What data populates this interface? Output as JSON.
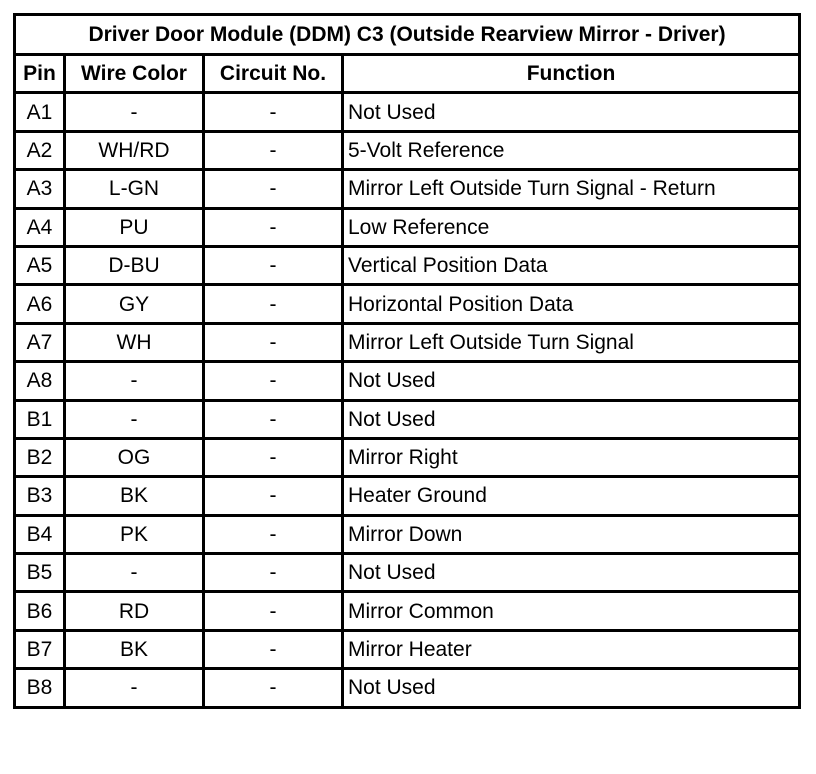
{
  "title": "Driver Door Module (DDM) C3 (Outside Rearview Mirror - Driver)",
  "headers": {
    "pin": "Pin",
    "wire_color": "Wire Color",
    "circuit": "Circuit No.",
    "function": "Function"
  },
  "rows": [
    {
      "pin": "A1",
      "wire_color": "-",
      "circuit": "-",
      "function": "Not Used"
    },
    {
      "pin": "A2",
      "wire_color": "WH/RD",
      "circuit": "-",
      "function": "5-Volt Reference"
    },
    {
      "pin": "A3",
      "wire_color": "L-GN",
      "circuit": "-",
      "function": "Mirror Left Outside Turn Signal - Return"
    },
    {
      "pin": "A4",
      "wire_color": "PU",
      "circuit": "-",
      "function": "Low Reference"
    },
    {
      "pin": "A5",
      "wire_color": "D-BU",
      "circuit": "-",
      "function": "Vertical Position Data"
    },
    {
      "pin": "A6",
      "wire_color": "GY",
      "circuit": "-",
      "function": "Horizontal Position Data"
    },
    {
      "pin": "A7",
      "wire_color": "WH",
      "circuit": "-",
      "function": "Mirror Left Outside Turn Signal"
    },
    {
      "pin": "A8",
      "wire_color": "-",
      "circuit": "-",
      "function": "Not Used"
    },
    {
      "pin": "B1",
      "wire_color": "-",
      "circuit": "-",
      "function": "Not Used"
    },
    {
      "pin": "B2",
      "wire_color": "OG",
      "circuit": "-",
      "function": "Mirror Right"
    },
    {
      "pin": "B3",
      "wire_color": "BK",
      "circuit": "-",
      "function": "Heater Ground"
    },
    {
      "pin": "B4",
      "wire_color": "PK",
      "circuit": "-",
      "function": "Mirror Down"
    },
    {
      "pin": "B5",
      "wire_color": "-",
      "circuit": "-",
      "function": "Not Used"
    },
    {
      "pin": "B6",
      "wire_color": "RD",
      "circuit": "-",
      "function": "Mirror Common"
    },
    {
      "pin": "B7",
      "wire_color": "BK",
      "circuit": "-",
      "function": "Mirror Heater"
    },
    {
      "pin": "B8",
      "wire_color": "-",
      "circuit": "-",
      "function": "Not Used"
    }
  ]
}
